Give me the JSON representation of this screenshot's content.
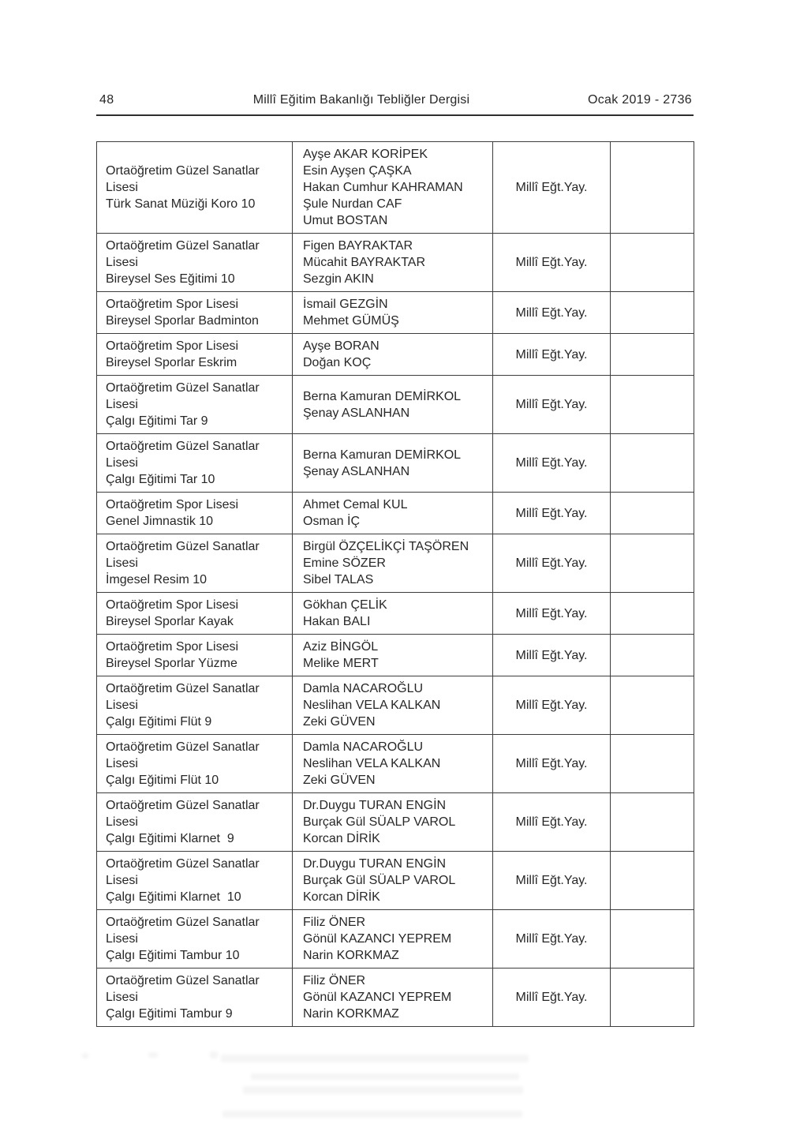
{
  "colors": {
    "text": "#272727",
    "border": "#3d3d3d",
    "rule": "#2e2e2e",
    "background": "#ffffff"
  },
  "header": {
    "page_number": "48",
    "title": "Millî Eğitim Bakanlığı Tebliğler Dergisi",
    "issue": "Ocak 2019 - 2736"
  },
  "table": {
    "rows": [
      {
        "school": [
          "Ortaöğretim Güzel Sanatlar",
          "Lisesi",
          "Türk Sanat Müziği Koro 10"
        ],
        "authors": [
          "Ayşe AKAR KORİPEK",
          "Esin Ayşen ÇAŞKA",
          "Hakan Cumhur KAHRAMAN",
          "Şule Nurdan CAF",
          "Umut BOSTAN"
        ],
        "publisher": "Millî Eğt.Yay.",
        "note": ""
      },
      {
        "school": [
          "Ortaöğretim Güzel Sanatlar",
          "Lisesi",
          "Bireysel Ses Eğitimi 10"
        ],
        "authors": [
          "Figen BAYRAKTAR",
          "Mücahit BAYRAKTAR",
          "Sezgin AKIN"
        ],
        "publisher": "Millî Eğt.Yay.",
        "note": ""
      },
      {
        "school": [
          "Ortaöğretim Spor Lisesi",
          "Bireysel Sporlar Badminton"
        ],
        "authors": [
          "İsmail GEZGİN",
          "Mehmet GÜMÜŞ"
        ],
        "publisher": "Millî Eğt.Yay.",
        "note": ""
      },
      {
        "school": [
          "Ortaöğretim Spor Lisesi",
          "Bireysel Sporlar Eskrim"
        ],
        "authors": [
          "Ayşe BORAN",
          "Doğan KOÇ"
        ],
        "publisher": "Millî Eğt.Yay.",
        "note": ""
      },
      {
        "school": [
          "Ortaöğretim Güzel Sanatlar",
          "Lisesi",
          "Çalgı Eğitimi Tar 9"
        ],
        "authors": [
          "Berna Kamuran DEMİRKOL",
          "Şenay ASLANHAN"
        ],
        "publisher": "Millî Eğt.Yay.",
        "note": ""
      },
      {
        "school": [
          "Ortaöğretim Güzel Sanatlar",
          "Lisesi",
          "Çalgı Eğitimi Tar 10"
        ],
        "authors": [
          "Berna Kamuran DEMİRKOL",
          "Şenay ASLANHAN"
        ],
        "publisher": "Millî Eğt.Yay.",
        "note": ""
      },
      {
        "school": [
          "Ortaöğretim Spor Lisesi",
          "Genel Jimnastik 10"
        ],
        "authors": [
          "Ahmet Cemal KUL",
          "Osman İÇ"
        ],
        "publisher": "Millî Eğt.Yay.",
        "note": ""
      },
      {
        "school": [
          "Ortaöğretim Güzel Sanatlar",
          "Lisesi",
          "İmgesel Resim 10"
        ],
        "authors": [
          "Birgül ÖZÇELİKÇİ TAŞÖREN",
          "Emine SÖZER",
          "Sibel TALAS"
        ],
        "publisher": "Millî Eğt.Yay.",
        "note": ""
      },
      {
        "school": [
          "Ortaöğretim Spor Lisesi",
          "Bireysel Sporlar Kayak"
        ],
        "authors": [
          "Gökhan ÇELİK",
          "Hakan BALI"
        ],
        "publisher": "Millî Eğt.Yay.",
        "note": ""
      },
      {
        "school": [
          "Ortaöğretim Spor Lisesi",
          "Bireysel Sporlar Yüzme"
        ],
        "authors": [
          "Aziz BİNGÖL",
          "Melike MERT"
        ],
        "publisher": "Millî Eğt.Yay.",
        "note": ""
      },
      {
        "school": [
          "Ortaöğretim Güzel Sanatlar",
          "Lisesi",
          "Çalgı Eğitimi Flüt 9"
        ],
        "authors": [
          "Damla NACAROĞLU",
          "Neslihan VELA KALKAN",
          "Zeki GÜVEN"
        ],
        "publisher": "Millî Eğt.Yay.",
        "note": ""
      },
      {
        "school": [
          "Ortaöğretim Güzel Sanatlar",
          "Lisesi",
          "Çalgı Eğitimi Flüt 10"
        ],
        "authors": [
          "Damla NACAROĞLU",
          "Neslihan VELA KALKAN",
          "Zeki GÜVEN"
        ],
        "publisher": "Millî Eğt.Yay.",
        "note": ""
      },
      {
        "school": [
          "Ortaöğretim Güzel Sanatlar",
          "Lisesi",
          "Çalgı Eğitimi Klarnet  9"
        ],
        "authors": [
          "Dr.Duygu TURAN ENGİN",
          "Burçak Gül SÜALP VAROL",
          "Korcan DİRİK"
        ],
        "publisher": "Millî Eğt.Yay.",
        "note": ""
      },
      {
        "school": [
          "Ortaöğretim Güzel Sanatlar",
          "Lisesi",
          "Çalgı Eğitimi Klarnet  10"
        ],
        "authors": [
          "Dr.Duygu TURAN ENGİN",
          "Burçak Gül SÜALP VAROL",
          "Korcan DİRİK"
        ],
        "publisher": "Millî Eğt.Yay.",
        "note": ""
      },
      {
        "school": [
          "Ortaöğretim Güzel Sanatlar",
          "Lisesi",
          "Çalgı Eğitimi Tambur 10"
        ],
        "authors": [
          "Filiz ÖNER",
          "Gönül KAZANCI YEPREM",
          "Narin KORKMAZ"
        ],
        "publisher": "Millî Eğt.Yay.",
        "note": ""
      },
      {
        "school": [
          "Ortaöğretim Güzel Sanatlar",
          "Lisesi",
          "Çalgı Eğitimi Tambur 9"
        ],
        "authors": [
          "Filiz ÖNER",
          "Gönül KAZANCI YEPREM",
          "Narin KORKMAZ"
        ],
        "publisher": "Millî Eğt.Yay.",
        "note": ""
      }
    ]
  }
}
